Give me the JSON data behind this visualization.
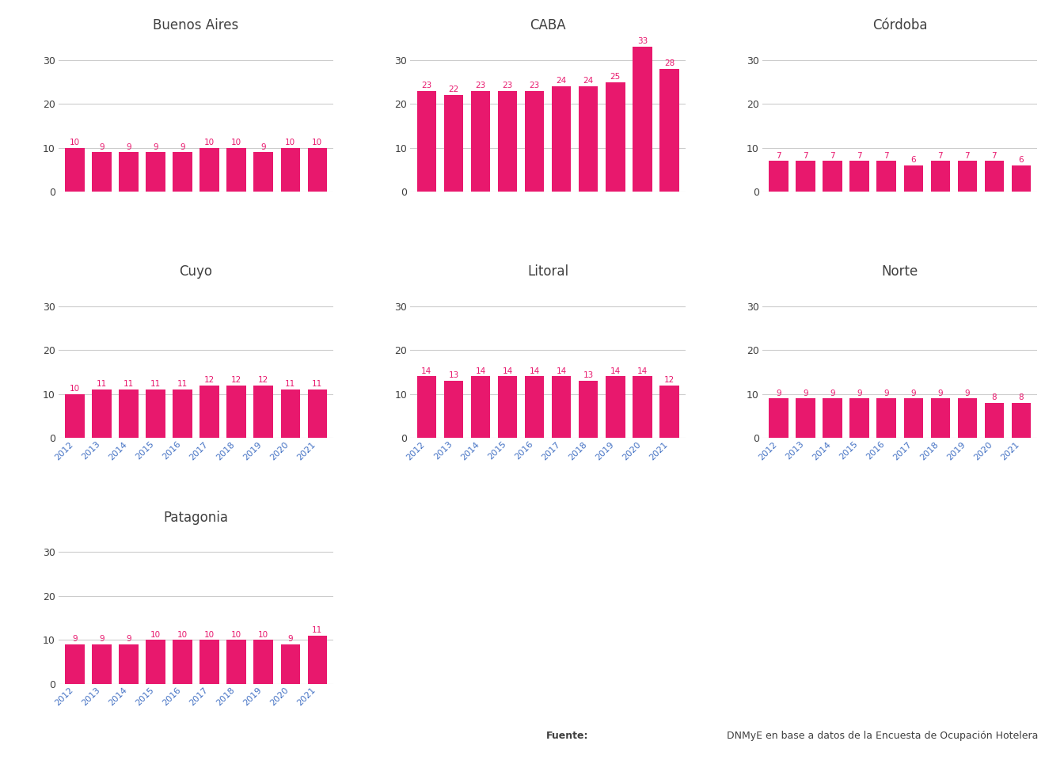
{
  "regions": [
    "Buenos Aires",
    "CABA",
    "Córdoba",
    "Cuyo",
    "Litoral",
    "Norte",
    "Patagonia"
  ],
  "years": [
    2012,
    2013,
    2014,
    2015,
    2016,
    2017,
    2018,
    2019,
    2020,
    2021
  ],
  "values": {
    "Buenos Aires": [
      10,
      9,
      9,
      9,
      9,
      10,
      10,
      9,
      10,
      10
    ],
    "CABA": [
      23,
      22,
      23,
      23,
      23,
      24,
      24,
      25,
      33,
      28
    ],
    "Córdoba": [
      7,
      7,
      7,
      7,
      7,
      6,
      7,
      7,
      7,
      6
    ],
    "Cuyo": [
      10,
      11,
      11,
      11,
      11,
      12,
      12,
      12,
      11,
      11
    ],
    "Litoral": [
      14,
      13,
      14,
      14,
      14,
      14,
      13,
      14,
      14,
      12
    ],
    "Norte": [
      9,
      9,
      9,
      9,
      9,
      9,
      9,
      9,
      8,
      8
    ],
    "Patagonia": [
      9,
      9,
      9,
      10,
      10,
      10,
      10,
      10,
      9,
      11
    ]
  },
  "bar_color": "#E8186D",
  "label_color": "#E8186D",
  "axis_label_color": "#4472C4",
  "title_color": "#404040",
  "background_color": "#FFFFFF",
  "grid_color": "#CCCCCC",
  "ylim": [
    0,
    35
  ],
  "yticks": [
    0,
    10,
    20,
    30
  ],
  "footer_text_bold": "Fuente:",
  "footer_text_normal": " DNMyE en base a datos de la Encuesta de Ocupación Hotelera"
}
